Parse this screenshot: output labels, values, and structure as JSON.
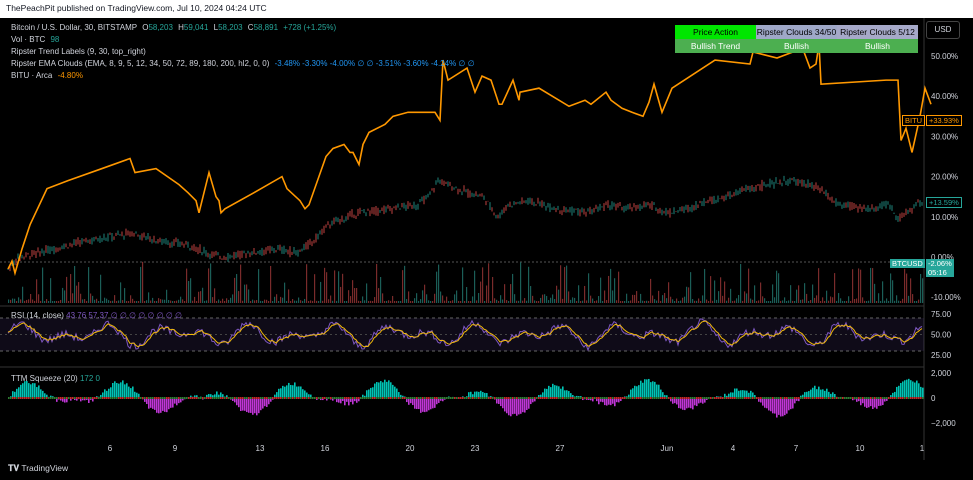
{
  "header": {
    "publisher": "ThePeachPit published on TradingView.com, Jul 10, 2024 04:24 UTC"
  },
  "legend": {
    "symbol": "Bitcoin / U.S. Dollar, 30, BITSTAMP",
    "ohlc": {
      "o_label": "O",
      "o": "58,203",
      "h_label": "H",
      "h": "59,041",
      "l_label": "L",
      "l": "58,203",
      "c_label": "C",
      "c": "58,891",
      "change": "+728 (+1.25%)"
    },
    "vol_label": "Vol · BTC",
    "vol_value": "98",
    "trend_labels": "Ripster Trend Labels (9, 30, top_right)",
    "ema_label": "Ripster EMA Clouds (EMA, 8, 9, 5, 12, 34, 50, 72, 89, 180, 200, hl2, 0, 0)",
    "ema_values": "-3.48%  -3.30%  -4.00%  ∅  ∅  -3.51%  -3.60%  -4.24%  ∅  ∅",
    "bitu_label": "BITU · Arca",
    "bitu_value": "-4.80%"
  },
  "trend_table": {
    "headers": [
      "Price Action",
      "Ripster Clouds 34/50",
      "Ripster Clouds 5/12"
    ],
    "values": [
      "Bullish Trend",
      "Bullish",
      "Bullish"
    ],
    "colors": {
      "header_pa": "#00e600",
      "header_rc": "#9fa8c8",
      "value_bg": "#4caf50"
    }
  },
  "currency_button": "USD",
  "price_labels": {
    "bitu_symbol": "BITU",
    "bitu_value": "+33.93%",
    "pct_value": "+13.59%",
    "btc_symbol": "BTCUSD",
    "btc_value": "-2.06%",
    "btc_timer": "05:16"
  },
  "rsi_pane": {
    "label": "RSI (14, close)",
    "values": "43.76  57.37  ∅  ∅  ∅  ∅  ∅  ∅  ∅  ∅"
  },
  "ttm_pane": {
    "label": "TTM Squeeze (20)",
    "value": "172",
    "value2": "0"
  },
  "tradingview_logo": "TradingView",
  "colors": {
    "bitu": "#ff9800",
    "btc_up": "#26a69a",
    "btc_down": "#ef5350",
    "rsi": "#7e57c2",
    "rsi_ma": "#f0b90b",
    "squeeze_pos": "#00e5d4",
    "squeeze_neg": "#e040fb"
  },
  "chart_data": {
    "type": "line",
    "x_ticks": [
      "6",
      "9",
      "13",
      "16",
      "20",
      "23",
      "27",
      "Jun",
      "4",
      "7",
      "10",
      "1"
    ],
    "y_axis_main": {
      "ticks": [
        "50.00%",
        "40.00%",
        "30.00%",
        "20.00%",
        "10.00%",
        "0.00%",
        "-10.00%"
      ],
      "values": [
        50,
        40,
        30,
        20,
        10,
        0,
        -10
      ]
    },
    "y_axis_rsi": {
      "ticks": [
        "75.00",
        "50.00",
        "25.00"
      ],
      "values": [
        75,
        50,
        25
      ]
    },
    "y_axis_ttm": {
      "ticks": [
        "2,000",
        "0",
        "−2,000"
      ],
      "values": [
        2000,
        0,
        -2000
      ]
    },
    "series": [
      {
        "name": "BITU",
        "x": [
          0,
          4,
          7,
          14,
          22,
          39,
          60,
          94,
          122,
          127,
          148,
          171,
          180,
          188,
          191,
          201,
          208,
          211,
          213,
          217,
          246,
          274,
          279,
          292,
          297,
          301,
          318,
          325,
          336,
          342,
          345,
          351,
          355,
          361,
          377,
          385,
          400,
          418,
          427,
          432,
          435,
          440,
          459,
          467,
          474,
          483,
          491,
          494,
          505,
          511,
          512,
          531,
          561,
          577,
          583,
          598,
          603,
          614,
          624,
          635,
          641,
          646,
          654,
          664,
          707,
          742,
          745,
          769,
          785,
          796,
          802,
          808,
          811,
          813,
          878,
          890,
          893,
          898,
          904,
          912,
          917,
          923
        ],
        "y": [
          -3,
          -1,
          -4,
          2,
          8,
          17,
          19,
          22,
          24.5,
          21,
          22,
          18,
          16,
          14,
          11,
          21,
          15,
          14,
          11,
          12,
          16,
          20,
          17,
          14,
          12,
          13,
          25,
          27,
          28,
          26,
          26,
          23,
          28,
          31,
          33,
          35,
          36,
          36,
          36,
          34,
          49,
          44,
          47,
          41,
          45,
          44,
          38,
          38,
          44,
          39,
          41,
          42,
          37.5,
          39,
          38,
          41,
          39,
          37,
          36,
          35,
          38.5,
          43,
          36,
          42,
          49,
          48,
          51,
          49.5,
          51,
          51,
          47,
          48,
          53,
          43,
          44,
          44,
          29,
          32,
          26,
          35,
          42,
          38
        ]
      },
      {
        "name": "BTC",
        "x": [
          0,
          10,
          30,
          60,
          100,
          125,
          150,
          180,
          200,
          215,
          240,
          270,
          290,
          305,
          320,
          350,
          380,
          410,
          420,
          430,
          440,
          460,
          475,
          490,
          500,
          520,
          550,
          580,
          600,
          620,
          640,
          660,
          680,
          700,
          720,
          740,
          760,
          780,
          800,
          810,
          830,
          860,
          880,
          890,
          900,
          910,
          923
        ],
        "y": [
          -3,
          0,
          1,
          3,
          5,
          6,
          4,
          3,
          1,
          0,
          1,
          2,
          1,
          4,
          8,
          11,
          12,
          13,
          15,
          19,
          18,
          16,
          15,
          10,
          13,
          14,
          12,
          11,
          13,
          12,
          13,
          11,
          12,
          14,
          15,
          17,
          18,
          19,
          18,
          17,
          13,
          12,
          13,
          10,
          11,
          13.6,
          12
        ]
      }
    ]
  }
}
